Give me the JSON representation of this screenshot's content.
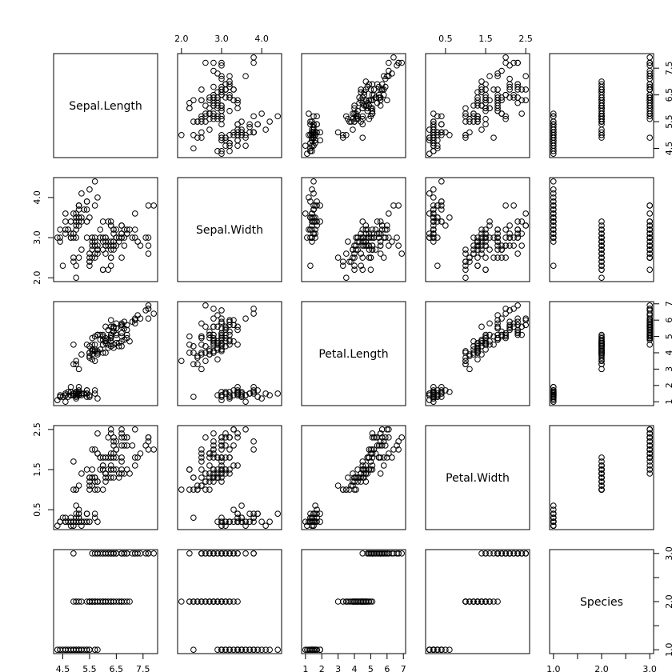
{
  "chart_data": {
    "type": "scatter",
    "title": "",
    "variables": [
      {
        "name": "Sepal.Length",
        "lim": [
          4.3,
          7.9
        ],
        "ticks": [
          4.5,
          5.5,
          6.5,
          7.5
        ]
      },
      {
        "name": "Sepal.Width",
        "lim": [
          2.0,
          4.4
        ],
        "ticks": [
          2.0,
          3.0,
          4.0
        ]
      },
      {
        "name": "Petal.Length",
        "lim": [
          1.0,
          6.9
        ],
        "ticks": [
          1,
          2,
          3,
          4,
          5,
          6,
          7
        ]
      },
      {
        "name": "Petal.Width",
        "lim": [
          0.1,
          2.5
        ],
        "ticks": [
          0.5,
          1.5,
          2.5
        ]
      },
      {
        "name": "Species",
        "lim": [
          1.0,
          3.0
        ],
        "ticks": [
          1.0,
          2.0,
          3.0
        ],
        "minor_ticks": [
          1.5,
          2.5
        ]
      }
    ],
    "tick_labels": {
      "Sepal.Length": [
        "4.5",
        "5.5",
        "6.5",
        "7.5"
      ],
      "Sepal.Width": [
        "2.0",
        "3.0",
        "4.0"
      ],
      "Petal.Length": [
        "1",
        "2",
        "3",
        "4",
        "5",
        "6",
        "7"
      ],
      "Petal.Width": [
        "0.5",
        "1.5",
        "2.5"
      ],
      "Species": [
        "1.0",
        "2.0",
        "3.0"
      ]
    },
    "rows": [
      [
        5.1,
        3.5,
        1.4,
        0.2,
        1
      ],
      [
        4.9,
        3.0,
        1.4,
        0.2,
        1
      ],
      [
        4.7,
        3.2,
        1.3,
        0.2,
        1
      ],
      [
        4.6,
        3.1,
        1.5,
        0.2,
        1
      ],
      [
        5.0,
        3.6,
        1.4,
        0.2,
        1
      ],
      [
        5.4,
        3.9,
        1.7,
        0.4,
        1
      ],
      [
        4.6,
        3.4,
        1.4,
        0.3,
        1
      ],
      [
        5.0,
        3.4,
        1.5,
        0.2,
        1
      ],
      [
        4.4,
        2.9,
        1.4,
        0.2,
        1
      ],
      [
        4.9,
        3.1,
        1.5,
        0.1,
        1
      ],
      [
        5.4,
        3.7,
        1.5,
        0.2,
        1
      ],
      [
        4.8,
        3.4,
        1.6,
        0.2,
        1
      ],
      [
        4.8,
        3.0,
        1.4,
        0.1,
        1
      ],
      [
        4.3,
        3.0,
        1.1,
        0.1,
        1
      ],
      [
        5.8,
        4.0,
        1.2,
        0.2,
        1
      ],
      [
        5.7,
        4.4,
        1.5,
        0.4,
        1
      ],
      [
        5.4,
        3.9,
        1.3,
        0.4,
        1
      ],
      [
        5.1,
        3.5,
        1.4,
        0.3,
        1
      ],
      [
        5.7,
        3.8,
        1.7,
        0.3,
        1
      ],
      [
        5.1,
        3.8,
        1.5,
        0.3,
        1
      ],
      [
        5.4,
        3.4,
        1.7,
        0.2,
        1
      ],
      [
        5.1,
        3.7,
        1.5,
        0.4,
        1
      ],
      [
        4.6,
        3.6,
        1.0,
        0.2,
        1
      ],
      [
        5.1,
        3.3,
        1.7,
        0.5,
        1
      ],
      [
        4.8,
        3.4,
        1.9,
        0.2,
        1
      ],
      [
        5.0,
        3.0,
        1.6,
        0.2,
        1
      ],
      [
        5.0,
        3.4,
        1.6,
        0.4,
        1
      ],
      [
        5.2,
        3.5,
        1.5,
        0.2,
        1
      ],
      [
        5.2,
        3.4,
        1.4,
        0.2,
        1
      ],
      [
        4.7,
        3.2,
        1.6,
        0.2,
        1
      ],
      [
        4.8,
        3.1,
        1.6,
        0.2,
        1
      ],
      [
        5.4,
        3.4,
        1.5,
        0.4,
        1
      ],
      [
        5.2,
        4.1,
        1.5,
        0.1,
        1
      ],
      [
        5.5,
        4.2,
        1.4,
        0.2,
        1
      ],
      [
        4.9,
        3.1,
        1.5,
        0.2,
        1
      ],
      [
        5.0,
        3.2,
        1.2,
        0.2,
        1
      ],
      [
        5.5,
        3.5,
        1.3,
        0.2,
        1
      ],
      [
        4.9,
        3.6,
        1.4,
        0.1,
        1
      ],
      [
        4.4,
        3.0,
        1.3,
        0.2,
        1
      ],
      [
        5.1,
        3.4,
        1.5,
        0.2,
        1
      ],
      [
        5.0,
        3.5,
        1.3,
        0.3,
        1
      ],
      [
        4.5,
        2.3,
        1.3,
        0.3,
        1
      ],
      [
        4.4,
        3.2,
        1.3,
        0.2,
        1
      ],
      [
        5.0,
        3.5,
        1.6,
        0.6,
        1
      ],
      [
        5.1,
        3.8,
        1.9,
        0.4,
        1
      ],
      [
        4.8,
        3.0,
        1.4,
        0.3,
        1
      ],
      [
        5.1,
        3.8,
        1.6,
        0.2,
        1
      ],
      [
        4.6,
        3.2,
        1.4,
        0.2,
        1
      ],
      [
        5.3,
        3.7,
        1.5,
        0.2,
        1
      ],
      [
        5.0,
        3.3,
        1.4,
        0.2,
        1
      ],
      [
        7.0,
        3.2,
        4.7,
        1.4,
        2
      ],
      [
        6.4,
        3.2,
        4.5,
        1.5,
        2
      ],
      [
        6.9,
        3.1,
        4.9,
        1.5,
        2
      ],
      [
        5.5,
        2.3,
        4.0,
        1.3,
        2
      ],
      [
        6.5,
        2.8,
        4.6,
        1.5,
        2
      ],
      [
        5.7,
        2.8,
        4.5,
        1.3,
        2
      ],
      [
        6.3,
        3.3,
        4.7,
        1.6,
        2
      ],
      [
        4.9,
        2.4,
        3.3,
        1.0,
        2
      ],
      [
        6.6,
        2.9,
        4.6,
        1.3,
        2
      ],
      [
        5.2,
        2.7,
        3.9,
        1.4,
        2
      ],
      [
        5.0,
        2.0,
        3.5,
        1.0,
        2
      ],
      [
        5.9,
        3.0,
        4.2,
        1.5,
        2
      ],
      [
        6.0,
        2.2,
        4.0,
        1.0,
        2
      ],
      [
        6.1,
        2.9,
        4.7,
        1.4,
        2
      ],
      [
        5.6,
        2.9,
        3.6,
        1.3,
        2
      ],
      [
        6.7,
        3.1,
        4.4,
        1.4,
        2
      ],
      [
        5.6,
        3.0,
        4.5,
        1.5,
        2
      ],
      [
        5.8,
        2.7,
        4.1,
        1.0,
        2
      ],
      [
        6.2,
        2.2,
        4.5,
        1.5,
        2
      ],
      [
        5.6,
        2.5,
        3.9,
        1.1,
        2
      ],
      [
        5.9,
        3.2,
        4.8,
        1.8,
        2
      ],
      [
        6.1,
        2.8,
        4.0,
        1.3,
        2
      ],
      [
        6.3,
        2.5,
        4.9,
        1.5,
        2
      ],
      [
        6.1,
        2.8,
        4.7,
        1.2,
        2
      ],
      [
        6.4,
        2.9,
        4.3,
        1.3,
        2
      ],
      [
        6.6,
        3.0,
        4.4,
        1.4,
        2
      ],
      [
        6.8,
        2.8,
        4.8,
        1.4,
        2
      ],
      [
        6.7,
        3.0,
        5.0,
        1.7,
        2
      ],
      [
        6.0,
        2.9,
        4.5,
        1.5,
        2
      ],
      [
        5.7,
        2.6,
        3.5,
        1.0,
        2
      ],
      [
        5.5,
        2.4,
        3.8,
        1.1,
        2
      ],
      [
        5.5,
        2.4,
        3.7,
        1.0,
        2
      ],
      [
        5.8,
        2.7,
        3.9,
        1.2,
        2
      ],
      [
        6.0,
        2.7,
        5.1,
        1.6,
        2
      ],
      [
        5.4,
        3.0,
        4.5,
        1.5,
        2
      ],
      [
        6.0,
        3.4,
        4.5,
        1.6,
        2
      ],
      [
        6.7,
        3.1,
        4.7,
        1.5,
        2
      ],
      [
        6.3,
        2.3,
        4.4,
        1.3,
        2
      ],
      [
        5.6,
        3.0,
        4.1,
        1.3,
        2
      ],
      [
        5.5,
        2.5,
        4.0,
        1.3,
        2
      ],
      [
        5.5,
        2.6,
        4.4,
        1.2,
        2
      ],
      [
        6.1,
        3.0,
        4.6,
        1.4,
        2
      ],
      [
        5.8,
        2.6,
        4.0,
        1.2,
        2
      ],
      [
        5.0,
        2.3,
        3.3,
        1.0,
        2
      ],
      [
        5.6,
        2.7,
        4.2,
        1.3,
        2
      ],
      [
        5.7,
        3.0,
        4.2,
        1.2,
        2
      ],
      [
        5.7,
        2.9,
        4.2,
        1.3,
        2
      ],
      [
        6.2,
        2.9,
        4.3,
        1.3,
        2
      ],
      [
        5.1,
        2.5,
        3.0,
        1.1,
        2
      ],
      [
        5.7,
        2.8,
        4.1,
        1.3,
        2
      ],
      [
        6.3,
        3.3,
        6.0,
        2.5,
        3
      ],
      [
        5.8,
        2.7,
        5.1,
        1.9,
        3
      ],
      [
        7.1,
        3.0,
        5.9,
        2.1,
        3
      ],
      [
        6.3,
        2.9,
        5.6,
        1.8,
        3
      ],
      [
        6.5,
        3.0,
        5.8,
        2.2,
        3
      ],
      [
        7.6,
        3.0,
        6.6,
        2.1,
        3
      ],
      [
        4.9,
        2.5,
        4.5,
        1.7,
        3
      ],
      [
        7.3,
        2.9,
        6.3,
        1.8,
        3
      ],
      [
        6.7,
        2.5,
        5.8,
        1.8,
        3
      ],
      [
        7.2,
        3.6,
        6.1,
        2.5,
        3
      ],
      [
        6.5,
        3.2,
        5.1,
        2.0,
        3
      ],
      [
        6.4,
        2.7,
        5.3,
        1.9,
        3
      ],
      [
        6.8,
        3.0,
        5.5,
        2.1,
        3
      ],
      [
        5.7,
        2.5,
        5.0,
        2.0,
        3
      ],
      [
        5.8,
        2.8,
        5.1,
        2.4,
        3
      ],
      [
        6.4,
        3.2,
        5.3,
        2.3,
        3
      ],
      [
        6.5,
        3.0,
        5.5,
        1.8,
        3
      ],
      [
        7.7,
        3.8,
        6.7,
        2.2,
        3
      ],
      [
        7.7,
        2.6,
        6.9,
        2.3,
        3
      ],
      [
        6.0,
        2.2,
        5.0,
        1.5,
        3
      ],
      [
        6.9,
        3.2,
        5.7,
        2.3,
        3
      ],
      [
        5.6,
        2.8,
        4.9,
        2.0,
        3
      ],
      [
        7.7,
        2.8,
        6.7,
        2.0,
        3
      ],
      [
        6.3,
        2.7,
        4.9,
        1.8,
        3
      ],
      [
        6.7,
        3.3,
        5.7,
        2.1,
        3
      ],
      [
        7.2,
        3.2,
        6.0,
        1.8,
        3
      ],
      [
        6.2,
        2.8,
        4.8,
        1.8,
        3
      ],
      [
        6.1,
        3.0,
        4.9,
        1.8,
        3
      ],
      [
        6.4,
        2.8,
        5.6,
        2.1,
        3
      ],
      [
        7.2,
        3.0,
        5.8,
        1.6,
        3
      ],
      [
        7.4,
        2.8,
        6.1,
        1.9,
        3
      ],
      [
        7.9,
        3.8,
        6.4,
        2.0,
        3
      ],
      [
        6.4,
        2.8,
        5.6,
        2.2,
        3
      ],
      [
        6.3,
        2.8,
        5.1,
        1.5,
        3
      ],
      [
        6.1,
        2.6,
        5.6,
        1.4,
        3
      ],
      [
        7.7,
        3.0,
        6.1,
        2.3,
        3
      ],
      [
        6.3,
        3.4,
        5.6,
        2.4,
        3
      ],
      [
        6.4,
        3.1,
        5.5,
        1.8,
        3
      ],
      [
        6.0,
        3.0,
        4.8,
        1.8,
        3
      ],
      [
        6.9,
        3.1,
        5.4,
        2.1,
        3
      ],
      [
        6.7,
        3.1,
        5.6,
        2.4,
        3
      ],
      [
        6.9,
        3.1,
        5.1,
        2.3,
        3
      ],
      [
        5.8,
        2.7,
        5.1,
        1.9,
        3
      ],
      [
        6.8,
        3.2,
        5.9,
        2.3,
        3
      ],
      [
        6.7,
        3.3,
        5.7,
        2.5,
        3
      ],
      [
        6.7,
        3.0,
        5.2,
        2.3,
        3
      ],
      [
        6.3,
        2.5,
        5.0,
        1.9,
        3
      ],
      [
        6.5,
        3.0,
        5.2,
        2.0,
        3
      ],
      [
        6.2,
        3.4,
        5.4,
        2.3,
        3
      ],
      [
        5.9,
        3.0,
        5.1,
        1.8,
        3
      ]
    ]
  }
}
